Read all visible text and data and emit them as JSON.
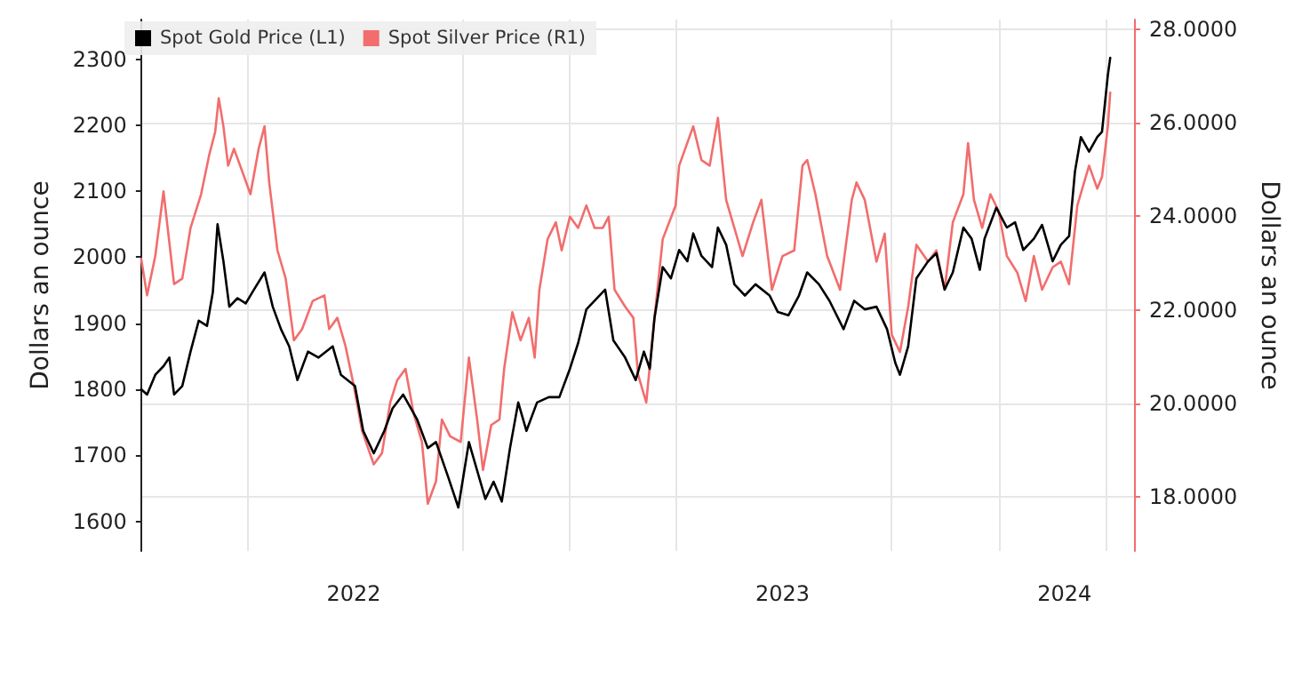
{
  "chart_data": {
    "type": "line",
    "ylabel": "Dollars an ounce",
    "y2label": "Dollars an ounce",
    "xlim": [
      "2022-01-01",
      "2024-04-26"
    ],
    "xticks": [
      {
        "value": "2022-04-01",
        "label": null
      },
      {
        "value": "2022-07-01",
        "label": "2022"
      },
      {
        "value": "2022-10-01",
        "label": null
      },
      {
        "value": "2023-01-01",
        "label": null
      },
      {
        "value": "2023-04-01",
        "label": null
      },
      {
        "value": "2023-07-01",
        "label": "2023"
      },
      {
        "value": "2023-10-01",
        "label": null
      },
      {
        "value": "2024-01-01",
        "label": null
      },
      {
        "value": "2024-02-26",
        "label": "2024"
      },
      {
        "value": "2024-04-01",
        "label": null
      }
    ],
    "ylim": [
      1555,
      2360
    ],
    "yticks": [
      1600,
      1700,
      1800,
      1900,
      2000,
      2100,
      2200,
      2300
    ],
    "y2lim": [
      16.85,
      28.2
    ],
    "y2ticks": [
      {
        "value": 18,
        "label": "18.0000"
      },
      {
        "value": 20,
        "label": "20.0000"
      },
      {
        "value": 22,
        "label": "22.0000"
      },
      {
        "value": 24,
        "label": "24.0000"
      },
      {
        "value": 26,
        "label": "26.0000"
      },
      {
        "value": 28,
        "label": "28.0000"
      }
    ],
    "grid": true,
    "legend": "top left",
    "marker": "none",
    "line_style": "solid",
    "series": [
      {
        "name": "Spot Gold Price (L1)",
        "color": "#000000",
        "axis": "y",
        "x": [
          "2022-01-01",
          "2022-01-06",
          "2022-01-13",
          "2022-01-20",
          "2022-01-25",
          "2022-01-29",
          "2022-02-05",
          "2022-02-12",
          "2022-02-19",
          "2022-02-26",
          "2022-03-03",
          "2022-03-07",
          "2022-03-12",
          "2022-03-17",
          "2022-03-24",
          "2022-03-31",
          "2022-04-07",
          "2022-04-16",
          "2022-04-23",
          "2022-04-30",
          "2022-05-07",
          "2022-05-14",
          "2022-05-23",
          "2022-06-01",
          "2022-06-13",
          "2022-06-20",
          "2022-07-02",
          "2022-07-09",
          "2022-07-18",
          "2022-07-27",
          "2022-08-03",
          "2022-08-12",
          "2022-08-24",
          "2022-09-02",
          "2022-09-09",
          "2022-09-19",
          "2022-09-28",
          "2022-10-07",
          "2022-10-14",
          "2022-10-21",
          "2022-10-28",
          "2022-11-04",
          "2022-11-11",
          "2022-11-18",
          "2022-11-25",
          "2022-12-04",
          "2022-12-14",
          "2022-12-23",
          "2023-01-01",
          "2023-01-08",
          "2023-01-15",
          "2023-01-22",
          "2023-01-31",
          "2023-02-07",
          "2023-02-17",
          "2023-02-26",
          "2023-03-05",
          "2023-03-10",
          "2023-03-14",
          "2023-03-21",
          "2023-03-28",
          "2023-04-04",
          "2023-04-11",
          "2023-04-16",
          "2023-04-23",
          "2023-05-02",
          "2023-05-07",
          "2023-05-14",
          "2023-05-21",
          "2023-05-30",
          "2023-06-08",
          "2023-06-20",
          "2023-06-27",
          "2023-07-06",
          "2023-07-15",
          "2023-07-22",
          "2023-08-01",
          "2023-08-10",
          "2023-08-22",
          "2023-08-31",
          "2023-09-09",
          "2023-09-19",
          "2023-09-28",
          "2023-10-05",
          "2023-10-09",
          "2023-10-16",
          "2023-10-23",
          "2023-11-02",
          "2023-11-09",
          "2023-11-16",
          "2023-11-23",
          "2023-12-02",
          "2023-12-09",
          "2023-12-16",
          "2023-12-20",
          "2023-12-30",
          "2024-01-08",
          "2024-01-15",
          "2024-01-22",
          "2024-01-31",
          "2024-02-07",
          "2024-02-16",
          "2024-02-23",
          "2024-03-01",
          "2024-03-06",
          "2024-03-11",
          "2024-03-18",
          "2024-03-25",
          "2024-03-29",
          "2024-04-03",
          "2024-04-05"
        ],
        "values": [
          1800,
          1792,
          1822,
          1835,
          1848,
          1792,
          1805,
          1857,
          1904,
          1896,
          1947,
          2050,
          1994,
          1925,
          1938,
          1930,
          1951,
          1977,
          1925,
          1891,
          1865,
          1814,
          1857,
          1848,
          1865,
          1822,
          1805,
          1737,
          1703,
          1737,
          1771,
          1792,
          1754,
          1711,
          1720,
          1669,
          1621,
          1720,
          1677,
          1634,
          1660,
          1630,
          1711,
          1780,
          1737,
          1780,
          1788,
          1788,
          1831,
          1870,
          1921,
          1934,
          1951,
          1874,
          1848,
          1814,
          1857,
          1831,
          1908,
          1985,
          1968,
          2011,
          1994,
          2036,
          2002,
          1985,
          2045,
          2019,
          1959,
          1942,
          1959,
          1942,
          1917,
          1912,
          1942,
          1977,
          1959,
          1934,
          1891,
          1934,
          1921,
          1925,
          1891,
          1840,
          1822,
          1865,
          1968,
          1994,
          2006,
          1951,
          1977,
          2045,
          2028,
          1981,
          2028,
          2075,
          2045,
          2053,
          2011,
          2028,
          2049,
          1994,
          2019,
          2032,
          2130,
          2182,
          2160,
          2182,
          2190,
          2276,
          2302
        ]
      },
      {
        "name": "Spot Silver Price (R1)",
        "color": "#f26d6d",
        "axis": "y2",
        "x": [
          "2022-01-01",
          "2022-01-06",
          "2022-01-13",
          "2022-01-20",
          "2022-01-29",
          "2022-02-05",
          "2022-02-12",
          "2022-02-21",
          "2022-02-28",
          "2022-03-05",
          "2022-03-08",
          "2022-03-12",
          "2022-03-16",
          "2022-03-21",
          "2022-03-28",
          "2022-04-04",
          "2022-04-11",
          "2022-04-16",
          "2022-04-20",
          "2022-04-27",
          "2022-05-04",
          "2022-05-11",
          "2022-05-18",
          "2022-05-27",
          "2022-06-06",
          "2022-06-10",
          "2022-06-17",
          "2022-06-24",
          "2022-07-01",
          "2022-07-08",
          "2022-07-18",
          "2022-07-25",
          "2022-08-01",
          "2022-08-07",
          "2022-08-14",
          "2022-08-21",
          "2022-08-28",
          "2022-09-02",
          "2022-09-09",
          "2022-09-14",
          "2022-09-21",
          "2022-09-30",
          "2022-10-07",
          "2022-10-14",
          "2022-10-19",
          "2022-10-26",
          "2022-11-02",
          "2022-11-06",
          "2022-11-13",
          "2022-11-20",
          "2022-11-27",
          "2022-12-02",
          "2022-12-06",
          "2022-12-13",
          "2022-12-20",
          "2022-12-25",
          "2023-01-01",
          "2023-01-08",
          "2023-01-15",
          "2023-01-22",
          "2023-01-29",
          "2023-02-03",
          "2023-02-08",
          "2023-02-17",
          "2023-02-24",
          "2023-02-28",
          "2023-03-07",
          "2023-03-14",
          "2023-03-21",
          "2023-04-01",
          "2023-04-04",
          "2023-04-16",
          "2023-04-23",
          "2023-04-30",
          "2023-05-07",
          "2023-05-14",
          "2023-05-21",
          "2023-05-28",
          "2023-06-06",
          "2023-06-13",
          "2023-06-22",
          "2023-07-01",
          "2023-07-11",
          "2023-07-18",
          "2023-07-22",
          "2023-07-29",
          "2023-08-08",
          "2023-08-19",
          "2023-08-29",
          "2023-09-02",
          "2023-09-09",
          "2023-09-19",
          "2023-09-26",
          "2023-10-02",
          "2023-10-09",
          "2023-10-16",
          "2023-10-23",
          "2023-11-02",
          "2023-11-09",
          "2023-11-16",
          "2023-11-23",
          "2023-12-02",
          "2023-12-06",
          "2023-12-11",
          "2023-12-18",
          "2023-12-25",
          "2024-01-01",
          "2024-01-08",
          "2024-01-17",
          "2024-01-24",
          "2024-01-31",
          "2024-02-07",
          "2024-02-16",
          "2024-02-23",
          "2024-03-01",
          "2024-03-08",
          "2024-03-18",
          "2024-03-25",
          "2024-03-29",
          "2024-04-03",
          "2024-04-05"
        ],
        "values": [
          23.09,
          22.31,
          23.15,
          24.53,
          22.55,
          22.67,
          23.75,
          24.47,
          25.32,
          25.8,
          26.52,
          25.92,
          25.08,
          25.44,
          24.96,
          24.47,
          25.44,
          25.92,
          24.72,
          23.27,
          22.67,
          21.35,
          21.59,
          22.19,
          22.31,
          21.59,
          21.83,
          21.22,
          20.38,
          19.42,
          18.7,
          18.94,
          20.02,
          20.5,
          20.74,
          19.78,
          19.18,
          17.86,
          18.34,
          19.66,
          19.3,
          19.18,
          20.98,
          19.66,
          18.58,
          19.54,
          19.66,
          20.74,
          21.95,
          21.35,
          21.83,
          20.98,
          22.43,
          23.51,
          23.87,
          23.27,
          23.99,
          23.75,
          24.23,
          23.75,
          23.75,
          23.99,
          22.43,
          22.07,
          21.83,
          20.62,
          20.02,
          21.83,
          23.51,
          24.23,
          25.08,
          25.92,
          25.2,
          25.08,
          26.1,
          24.35,
          23.75,
          23.15,
          23.87,
          24.35,
          22.43,
          23.15,
          23.27,
          25.08,
          25.2,
          24.47,
          23.15,
          22.43,
          24.35,
          24.72,
          24.35,
          23.03,
          23.63,
          21.47,
          21.1,
          22.07,
          23.39,
          23.03,
          23.27,
          22.43,
          23.87,
          24.47,
          25.56,
          24.35,
          23.75,
          24.47,
          24.11,
          23.15,
          22.79,
          22.19,
          23.15,
          22.43,
          22.91,
          23.03,
          22.55,
          24.23,
          25.08,
          24.59,
          24.84,
          25.92,
          26.64
        ]
      }
    ]
  }
}
